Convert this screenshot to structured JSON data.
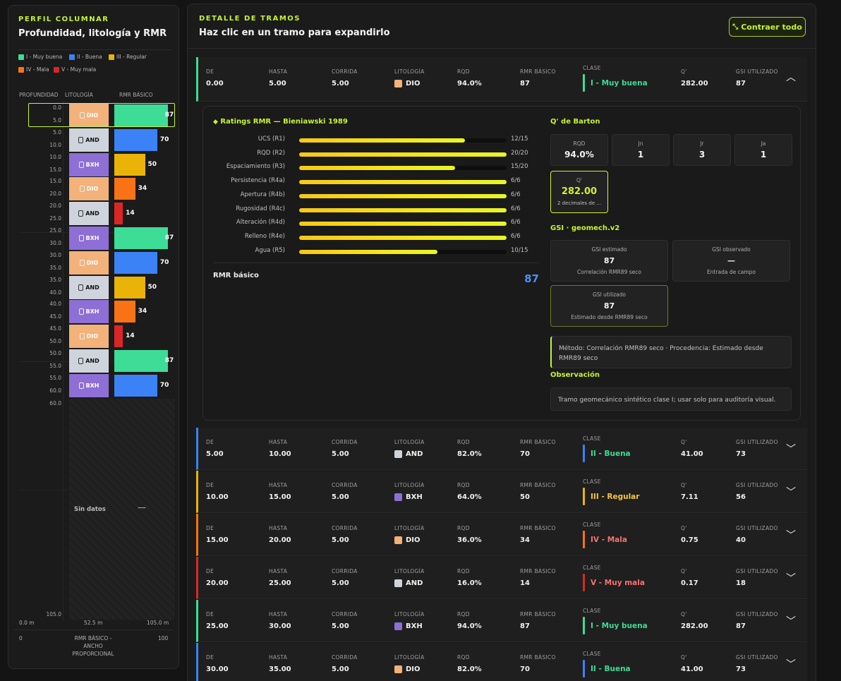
{
  "left": {
    "eyebrow": "PERFIL COLUMNAR",
    "title": "Profundidad, litología y RMR",
    "legend": [
      {
        "label": "I - Muy buena",
        "color": "#3ddc97"
      },
      {
        "label": "II - Buena",
        "color": "#3b82f6"
      },
      {
        "label": "III - Regular",
        "color": "#eab308"
      },
      {
        "label": "IV - Mala",
        "color": "#f97316"
      },
      {
        "label": "V - Muy mala",
        "color": "#dc2626"
      }
    ],
    "headers": {
      "depth": "PROFUNDIDAD",
      "lith": "LITOLOGÍA",
      "rmr": "RMR BÁSICO"
    },
    "depth_labels": [
      "0.0",
      "5.0",
      "5.0",
      "10.0",
      "10.0",
      "15.0",
      "15.0",
      "20.0",
      "20.0",
      "25.0",
      "25.0",
      "30.0",
      "30.0",
      "35.0",
      "35.0",
      "40.0",
      "40.0",
      "45.0",
      "45.0",
      "50.0",
      "50.0",
      "55.0",
      "55.0",
      "60.0",
      "60.0",
      "105.0"
    ],
    "segments": [
      {
        "lith": "DIO",
        "rmr": 87
      },
      {
        "lith": "AND",
        "rmr": 70
      },
      {
        "lith": "BXH",
        "rmr": 50
      },
      {
        "lith": "DIO",
        "rmr": 34
      },
      {
        "lith": "AND",
        "rmr": 14
      },
      {
        "lith": "BXH",
        "rmr": 87
      },
      {
        "lith": "DIO",
        "rmr": 70
      },
      {
        "lith": "AND",
        "rmr": 50
      },
      {
        "lith": "BXH",
        "rmr": 34
      },
      {
        "lith": "DIO",
        "rmr": 14
      },
      {
        "lith": "AND",
        "rmr": 87
      },
      {
        "lith": "BXH",
        "rmr": 70
      }
    ],
    "no_data": "Sin datos",
    "no_data_dash": "—",
    "axis": {
      "d0": "0.0 m",
      "dmid": "52.5 m",
      "dmax": "105.0 m",
      "r0": "0",
      "rlabel1": "RMR BÁSICO -",
      "rlabel2": "ANCHO",
      "rlabel3": "PROPORCIONAL",
      "r100": "100"
    }
  },
  "lith_colors": {
    "DIO": "#f2b27a",
    "AND": "#cfd4dc",
    "BXH": "#8e6fd6"
  },
  "class_colors": {
    "I - Muy buena": "#3ddc97",
    "II - Buena": "#3b82f6",
    "III - Regular": "#eab308",
    "IV - Mala": "#f97316",
    "V - Muy mala": "#dc2626"
  },
  "class_text": {
    "I - Muy buena": "#3ddc97",
    "II - Buena": "#3ddc97",
    "III - Regular": "#f5c542",
    "IV - Mala": "#f87171",
    "V - Muy mala": "#f87171"
  },
  "right": {
    "eyebrow": "DETALLE DE TRAMOS",
    "title": "Haz clic en un tramo para expandirlo",
    "collapse_label": "Contraer todo",
    "cols": {
      "de": "DE",
      "hasta": "HASTA",
      "corrida": "CORRIDA",
      "lith": "LITOLOGÍA",
      "rqd": "RQD",
      "rmr": "RMR BÁSICO",
      "clase": "CLASE",
      "q": "Q'",
      "gsi": "GSI UTILIZADO"
    },
    "rows": [
      {
        "de": "0.00",
        "hasta": "5.00",
        "corrida": "5.00",
        "lith": "DIO",
        "rqd": "94.0%",
        "rmr": "87",
        "clase": "I - Muy buena",
        "q": "282.00",
        "gsi": "87"
      },
      {
        "de": "5.00",
        "hasta": "10.00",
        "corrida": "5.00",
        "lith": "AND",
        "rqd": "82.0%",
        "rmr": "70",
        "clase": "II - Buena",
        "q": "41.00",
        "gsi": "73"
      },
      {
        "de": "10.00",
        "hasta": "15.00",
        "corrida": "5.00",
        "lith": "BXH",
        "rqd": "64.0%",
        "rmr": "50",
        "clase": "III - Regular",
        "q": "7.11",
        "gsi": "56"
      },
      {
        "de": "15.00",
        "hasta": "20.00",
        "corrida": "5.00",
        "lith": "DIO",
        "rqd": "36.0%",
        "rmr": "34",
        "clase": "IV - Mala",
        "q": "0.75",
        "gsi": "40"
      },
      {
        "de": "20.00",
        "hasta": "25.00",
        "corrida": "5.00",
        "lith": "AND",
        "rqd": "16.0%",
        "rmr": "14",
        "clase": "V - Muy mala",
        "q": "0.17",
        "gsi": "18"
      },
      {
        "de": "25.00",
        "hasta": "30.00",
        "corrida": "5.00",
        "lith": "BXH",
        "rqd": "94.0%",
        "rmr": "87",
        "clase": "I - Muy buena",
        "q": "282.00",
        "gsi": "87"
      },
      {
        "de": "30.00",
        "hasta": "35.00",
        "corrida": "5.00",
        "lith": "DIO",
        "rqd": "82.0%",
        "rmr": "70",
        "clase": "II - Buena",
        "q": "41.00",
        "gsi": "73"
      }
    ],
    "detail": {
      "ratings_title": "Ratings RMR — Bieniawski 1989",
      "ratings": [
        {
          "label": "UCS (R1)",
          "value": "12/15",
          "score": 12,
          "max": 15
        },
        {
          "label": "RQD (R2)",
          "value": "20/20",
          "score": 20,
          "max": 20
        },
        {
          "label": "Espaciamiento (R3)",
          "value": "15/20",
          "score": 15,
          "max": 20
        },
        {
          "label": "Persistencia (R4a)",
          "value": "6/6",
          "score": 6,
          "max": 6
        },
        {
          "label": "Apertura (R4b)",
          "value": "6/6",
          "score": 6,
          "max": 6
        },
        {
          "label": "Rugosidad (R4c)",
          "value": "6/6",
          "score": 6,
          "max": 6
        },
        {
          "label": "Alteración (R4d)",
          "value": "6/6",
          "score": 6,
          "max": 6
        },
        {
          "label": "Relleno (R4e)",
          "value": "6/6",
          "score": 6,
          "max": 6
        },
        {
          "label": "Agua (R5)",
          "value": "10/15",
          "score": 10,
          "max": 15
        }
      ],
      "rmr_label": "RMR básico",
      "rmr_value": "87",
      "barton_title": "Q' de Barton",
      "barton": [
        {
          "label": "RQD",
          "value": "94.0%"
        },
        {
          "label": "Jn",
          "value": "1"
        },
        {
          "label": "Jr",
          "value": "3"
        },
        {
          "label": "Ja",
          "value": "1"
        }
      ],
      "q_label": "Q'",
      "q_value": "282.00",
      "q_sub": "2 decimales de ...",
      "gsi_title": "GSI · geomech.v2",
      "gsi_est": {
        "label": "GSI estimado",
        "value": "87",
        "sub": "Correlación RMR89 seco"
      },
      "gsi_obs": {
        "label": "GSI observado",
        "value": "—",
        "sub": "Entrada de campo"
      },
      "gsi_used": {
        "label": "GSI utilizado",
        "value": "87",
        "sub": "Estimado desde RMR89 seco"
      },
      "method": "Método: Correlación RMR89 seco · Procedencia: Estimado desde RMR89 seco",
      "obs_title": "Observación",
      "obs_text": "Tramo geomecánico sintético clase I; usar solo para auditoría visual."
    }
  }
}
